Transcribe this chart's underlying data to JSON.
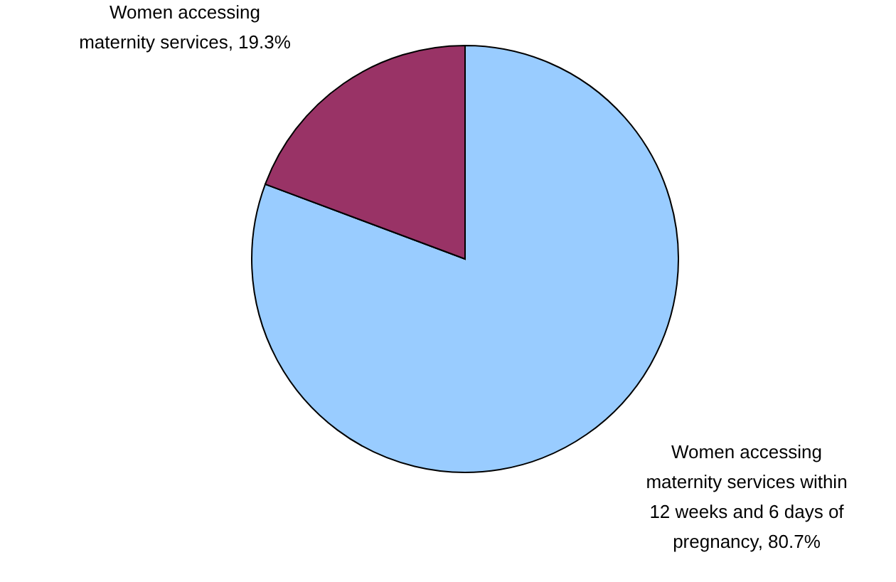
{
  "chart_data": {
    "type": "pie",
    "categories": [
      "Women accessing maternity services within 12 weeks and 6 days of pregnancy",
      "Women accessing maternity services"
    ],
    "values": [
      80.7,
      19.3
    ],
    "value_labels": [
      "80.7%",
      "19.3%"
    ],
    "colors": [
      "#99ccff",
      "#993366"
    ]
  }
}
